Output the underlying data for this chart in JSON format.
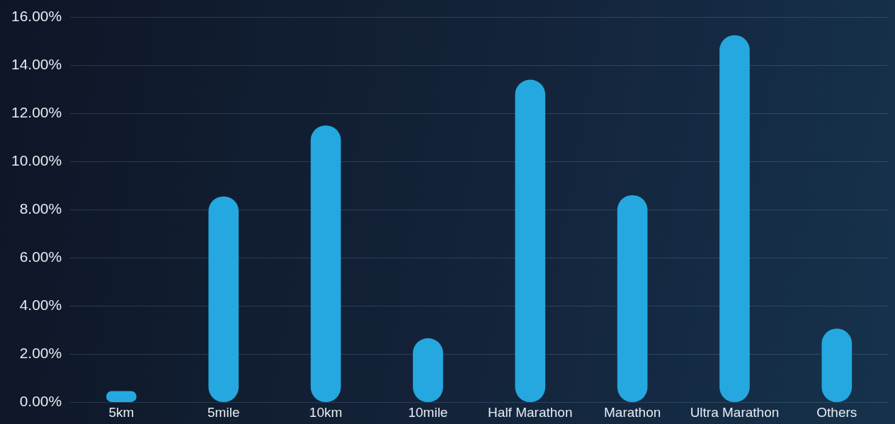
{
  "chart_data": {
    "type": "bar",
    "categories": [
      "5km",
      "5mile",
      "10km",
      "10mile",
      "Half Marathon",
      "Marathon",
      "Ultra Marathon",
      "Others"
    ],
    "values": [
      0.45,
      8.55,
      11.5,
      2.65,
      13.4,
      8.6,
      15.25,
      3.05
    ],
    "color": "#25a8e0",
    "ylim": [
      0,
      16
    ],
    "yticks": [
      {
        "value": 0,
        "label": "0.00%"
      },
      {
        "value": 2,
        "label": "2.00%"
      },
      {
        "value": 4,
        "label": "4.00%"
      },
      {
        "value": 6,
        "label": "6.00%"
      },
      {
        "value": 8,
        "label": "8.00%"
      },
      {
        "value": 10,
        "label": "10.00%"
      },
      {
        "value": 12,
        "label": "12.00%"
      },
      {
        "value": 14,
        "label": "14.00%"
      },
      {
        "value": 16,
        "label": "16.00%"
      }
    ],
    "grid": "y"
  }
}
